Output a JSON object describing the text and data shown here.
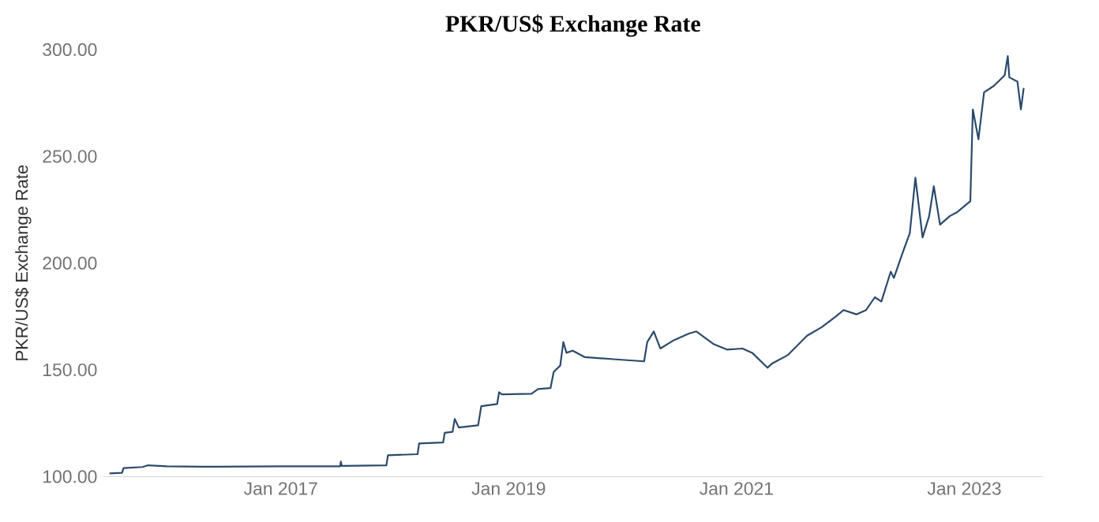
{
  "chart_data": {
    "type": "line",
    "title": "PKR/US$ Exchange Rate",
    "ylabel": "PKR/US$ Exchange Rate",
    "xlim": [
      "2015-06-10",
      "2023-09-10"
    ],
    "ylim": [
      100,
      300
    ],
    "xticks": [
      {
        "value": "2017-01-01",
        "label": "Jan 2017"
      },
      {
        "value": "2019-01-01",
        "label": "Jan 2019"
      },
      {
        "value": "2021-01-01",
        "label": "Jan 2021"
      },
      {
        "value": "2023-01-01",
        "label": "Jan 2023"
      }
    ],
    "yticks": [
      {
        "value": 100,
        "label": "100.00"
      },
      {
        "value": 150,
        "label": "150.00"
      },
      {
        "value": 200,
        "label": "200.00"
      },
      {
        "value": 250,
        "label": "250.00"
      },
      {
        "value": 300,
        "label": "300.00"
      }
    ],
    "grid": false,
    "marker": "none",
    "line_style": "solid",
    "series": [
      {
        "color": "#2b4a6b",
        "x": [
          "2015-07-01",
          "2015-08-10",
          "2015-08-15",
          "2015-10-15",
          "2015-11-01",
          "2016-01-01",
          "2016-06-01",
          "2017-01-01",
          "2017-07-10",
          "2017-07-12",
          "2017-07-15",
          "2017-12-05",
          "2017-12-10",
          "2018-03-15",
          "2018-03-20",
          "2018-06-05",
          "2018-06-10",
          "2018-07-05",
          "2018-07-12",
          "2018-07-25",
          "2018-09-25",
          "2018-10-05",
          "2018-11-25",
          "2018-12-01",
          "2018-12-10",
          "2019-03-15",
          "2019-04-05",
          "2019-05-15",
          "2019-05-25",
          "2019-06-15",
          "2019-06-25",
          "2019-07-05",
          "2019-07-25",
          "2019-09-01",
          "2019-12-01",
          "2020-03-10",
          "2020-03-20",
          "2020-04-10",
          "2020-05-01",
          "2020-06-15",
          "2020-08-01",
          "2020-08-25",
          "2020-10-20",
          "2020-12-01",
          "2021-01-20",
          "2021-02-20",
          "2021-04-10",
          "2021-04-25",
          "2021-06-15",
          "2021-08-15",
          "2021-10-01",
          "2021-11-15",
          "2021-12-10",
          "2022-01-20",
          "2022-02-20",
          "2022-03-20",
          "2022-04-10",
          "2022-05-10",
          "2022-05-20",
          "2022-06-20",
          "2022-07-10",
          "2022-07-28",
          "2022-08-20",
          "2022-09-10",
          "2022-09-25",
          "2022-10-15",
          "2022-11-15",
          "2022-12-10",
          "2023-01-20",
          "2023-01-28",
          "2023-02-15",
          "2023-03-05",
          "2023-04-05",
          "2023-05-10",
          "2023-05-20",
          "2023-05-25",
          "2023-06-20",
          "2023-07-01",
          "2023-07-10"
        ],
        "values": [
          101.5,
          101.8,
          104,
          104.5,
          105.3,
          104.8,
          104.6,
          104.8,
          104.8,
          107,
          105,
          105.3,
          110,
          110.5,
          115.5,
          116,
          120.5,
          121,
          127,
          123,
          124,
          133,
          134,
          139.5,
          138.5,
          138.8,
          141,
          141.5,
          149,
          152,
          163,
          158,
          159,
          156,
          155,
          154,
          163,
          168,
          160,
          164,
          167,
          168,
          162,
          159.5,
          160,
          158,
          151,
          153,
          157,
          166,
          170,
          175,
          178,
          176,
          178,
          184,
          182,
          196,
          193,
          206,
          214,
          240,
          212,
          222,
          236,
          218,
          222,
          224,
          229,
          272,
          258,
          280,
          283,
          288,
          297,
          287,
          285,
          272,
          282
        ]
      }
    ]
  }
}
